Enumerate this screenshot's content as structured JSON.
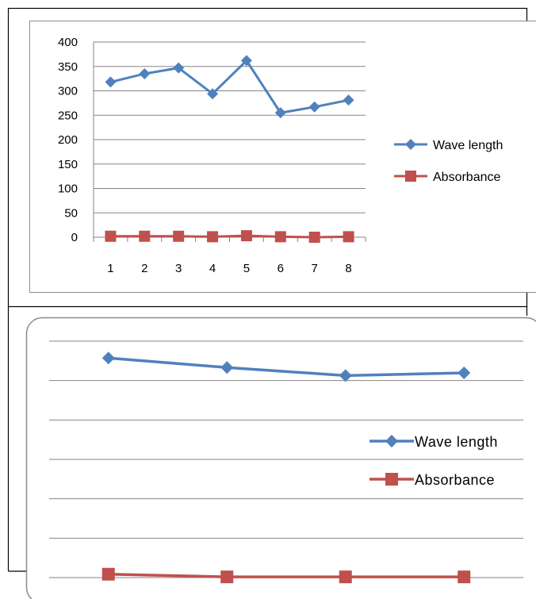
{
  "colors": {
    "wave": "#4F81BD",
    "absorbance": "#C0504D",
    "grid": "#868686",
    "border": "#000000",
    "chart_area_border": "#8C8C8C"
  },
  "chart_data": [
    {
      "type": "line",
      "x": [
        "1",
        "2",
        "3",
        "4",
        "5",
        "6",
        "7",
        "8"
      ],
      "series": [
        {
          "name": "Wave length",
          "values": [
            318,
            335,
            347,
            294,
            362,
            255,
            267,
            281
          ],
          "marker": "diamond"
        },
        {
          "name": "Absorbance",
          "values": [
            2,
            2,
            2,
            1,
            3,
            1,
            0,
            1
          ],
          "marker": "square"
        }
      ],
      "ylim": [
        0,
        400
      ],
      "yticks": [
        "0",
        "50",
        "100",
        "150",
        "200",
        "250",
        "300",
        "350",
        "400"
      ],
      "grid": true,
      "legend": "right"
    },
    {
      "type": "line",
      "x": [
        "",
        "",
        "",
        ""
      ],
      "series": [
        {
          "name": "Wave length",
          "values": [
            325,
            311,
            299,
            303
          ],
          "marker": "diamond"
        },
        {
          "name": "Absorbance",
          "values": [
            5,
            1,
            1,
            1
          ],
          "marker": "square"
        }
      ],
      "ylim": [
        0,
        350
      ],
      "grid": true,
      "legend": "right"
    }
  ]
}
